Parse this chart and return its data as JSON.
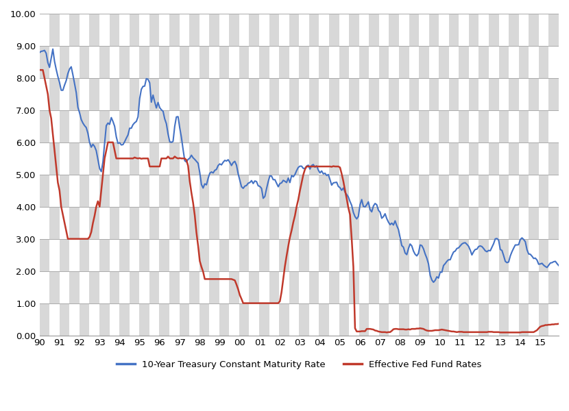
{
  "title": "",
  "xlabel": "",
  "ylabel": "",
  "ylim": [
    0.0,
    10.0
  ],
  "yticks": [
    0.0,
    1.0,
    2.0,
    3.0,
    4.0,
    5.0,
    6.0,
    7.0,
    8.0,
    9.0,
    10.0
  ],
  "xtick_labels": [
    "90",
    "91",
    "92",
    "93",
    "94",
    "95",
    "96",
    "97",
    "98",
    "99",
    "00",
    "01",
    "02",
    "03",
    "04",
    "05",
    "06",
    "07",
    "08",
    "09",
    "10",
    "11",
    "12",
    "13",
    "14",
    "15"
  ],
  "treasury_color": "#4472C4",
  "fed_color": "#C0392B",
  "legend_treasury": "10-Year Treasury Constant Maturity Rate",
  "legend_fed": "Effective Fed Fund Rates",
  "checker_light": "#ffffff",
  "checker_dark": "#d8d8d8",
  "gridline_color": "#aaaaaa",
  "n_checker_cols": 52,
  "n_checker_rows": 10,
  "treasury_data": [
    8.79,
    8.83,
    8.84,
    8.86,
    8.77,
    8.48,
    8.33,
    8.61,
    8.9,
    8.52,
    8.27,
    8.05,
    7.86,
    7.62,
    7.62,
    7.78,
    7.92,
    8.14,
    8.28,
    8.35,
    8.1,
    7.83,
    7.55,
    7.09,
    6.92,
    6.71,
    6.6,
    6.52,
    6.46,
    6.28,
    6.0,
    5.85,
    5.94,
    5.87,
    5.74,
    5.47,
    5.19,
    5.09,
    5.39,
    5.97,
    6.52,
    6.6,
    6.56,
    6.77,
    6.65,
    6.5,
    6.17,
    5.97,
    5.99,
    5.92,
    5.93,
    6.02,
    6.13,
    6.23,
    6.44,
    6.44,
    6.55,
    6.61,
    6.65,
    6.79,
    7.36,
    7.65,
    7.74,
    7.75,
    7.98,
    7.96,
    7.85,
    7.25,
    7.47,
    7.26,
    7.07,
    7.24,
    7.08,
    7.01,
    6.97,
    6.73,
    6.58,
    6.26,
    6.02,
    6.0,
    6.03,
    6.5,
    6.79,
    6.8,
    6.45,
    6.16,
    5.78,
    5.43,
    5.39,
    5.47,
    5.51,
    5.6,
    5.52,
    5.47,
    5.41,
    5.35,
    5.06,
    4.69,
    4.58,
    4.71,
    4.68,
    4.88,
    5.04,
    5.08,
    5.05,
    5.13,
    5.16,
    5.28,
    5.33,
    5.3,
    5.38,
    5.44,
    5.42,
    5.46,
    5.38,
    5.28,
    5.37,
    5.41,
    5.29,
    5.02,
    4.82,
    4.62,
    4.57,
    4.64,
    4.66,
    4.73,
    4.75,
    4.81,
    4.72,
    4.8,
    4.78,
    4.65,
    4.63,
    4.57,
    4.26,
    4.32,
    4.56,
    4.78,
    4.96,
    4.95,
    4.84,
    4.84,
    4.73,
    4.62,
    4.72,
    4.74,
    4.82,
    4.79,
    4.75,
    4.89,
    4.75,
    4.97,
    4.93,
    5.0,
    5.12,
    5.22,
    5.26,
    5.26,
    5.19,
    5.19,
    5.26,
    5.29,
    5.17,
    5.28,
    5.31,
    5.23,
    5.27,
    5.14,
    5.05,
    5.11,
    5.02,
    5.04,
    4.97,
    5.0,
    4.84,
    4.67,
    4.74,
    4.75,
    4.76,
    4.63,
    4.59,
    4.51,
    4.58,
    4.45,
    4.38,
    4.3,
    4.16,
    4.04,
    3.82,
    3.69,
    3.62,
    3.7,
    4.06,
    4.22,
    4.01,
    3.99,
    4.06,
    4.15,
    3.91,
    3.84,
    4.02,
    4.1,
    4.06,
    3.89,
    3.83,
    3.64,
    3.69,
    3.78,
    3.63,
    3.52,
    3.44,
    3.49,
    3.43,
    3.56,
    3.41,
    3.29,
    3.04,
    2.79,
    2.74,
    2.56,
    2.51,
    2.7,
    2.84,
    2.78,
    2.62,
    2.52,
    2.47,
    2.55,
    2.81,
    2.79,
    2.69,
    2.53,
    2.4,
    2.22,
    1.87,
    1.72,
    1.65,
    1.71,
    1.82,
    1.78,
    1.97,
    1.96,
    2.17,
    2.23,
    2.3,
    2.35,
    2.35,
    2.48,
    2.59,
    2.62,
    2.7,
    2.72,
    2.78,
    2.84,
    2.87,
    2.88,
    2.83,
    2.77,
    2.65,
    2.5,
    2.6,
    2.67,
    2.68,
    2.76,
    2.78,
    2.76,
    2.7,
    2.63,
    2.6,
    2.64,
    2.63,
    2.74,
    2.85,
    3.0,
    3.01,
    2.96,
    2.67,
    2.64,
    2.48,
    2.3,
    2.26,
    2.28,
    2.47,
    2.6,
    2.71,
    2.81,
    2.81,
    2.82,
    2.98,
    3.03,
    2.98,
    2.91,
    2.66,
    2.53,
    2.52,
    2.46,
    2.39,
    2.4,
    2.34,
    2.21,
    2.22,
    2.24,
    2.18,
    2.14,
    2.11,
    2.18,
    2.25,
    2.26,
    2.29,
    2.3,
    2.23,
    2.17
  ],
  "fed_data": [
    8.25,
    8.25,
    8.25,
    8.0,
    7.75,
    7.5,
    7.0,
    6.75,
    6.25,
    5.75,
    5.25,
    4.75,
    4.5,
    4.0,
    3.75,
    3.5,
    3.25,
    3.0,
    3.0,
    3.0,
    3.0,
    3.0,
    3.0,
    3.0,
    3.0,
    3.0,
    3.0,
    3.0,
    3.0,
    3.0,
    3.06,
    3.21,
    3.49,
    3.72,
    4.0,
    4.17,
    4.0,
    4.5,
    5.0,
    5.5,
    5.75,
    6.0,
    6.0,
    6.0,
    6.0,
    5.75,
    5.5,
    5.5,
    5.5,
    5.5,
    5.5,
    5.5,
    5.5,
    5.5,
    5.5,
    5.5,
    5.5,
    5.53,
    5.51,
    5.5,
    5.51,
    5.49,
    5.5,
    5.5,
    5.5,
    5.5,
    5.25,
    5.25,
    5.25,
    5.25,
    5.25,
    5.25,
    5.25,
    5.5,
    5.5,
    5.5,
    5.5,
    5.56,
    5.5,
    5.5,
    5.5,
    5.56,
    5.52,
    5.5,
    5.51,
    5.5,
    5.5,
    5.5,
    5.45,
    5.27,
    4.79,
    4.43,
    4.12,
    3.73,
    3.2,
    2.79,
    2.31,
    2.13,
    1.98,
    1.75,
    1.75,
    1.75,
    1.75,
    1.75,
    1.75,
    1.75,
    1.75,
    1.75,
    1.75,
    1.75,
    1.75,
    1.75,
    1.75,
    1.75,
    1.75,
    1.75,
    1.73,
    1.71,
    1.58,
    1.43,
    1.25,
    1.13,
    1.0,
    1.0,
    1.0,
    1.0,
    1.0,
    1.0,
    1.0,
    1.0,
    1.0,
    1.0,
    1.0,
    1.0,
    1.0,
    1.0,
    1.0,
    1.0,
    1.0,
    1.0,
    1.0,
    1.0,
    1.0,
    1.0,
    1.06,
    1.35,
    1.75,
    2.15,
    2.47,
    2.77,
    3.05,
    3.26,
    3.51,
    3.72,
    4.0,
    4.22,
    4.5,
    4.75,
    4.99,
    5.16,
    5.25,
    5.25,
    5.25,
    5.25,
    5.25,
    5.25,
    5.25,
    5.25,
    5.25,
    5.25,
    5.25,
    5.25,
    5.25,
    5.25,
    5.25,
    5.24,
    5.26,
    5.25,
    5.25,
    5.25,
    5.22,
    5.02,
    4.79,
    4.51,
    4.25,
    3.96,
    3.75,
    3.0,
    2.13,
    0.22,
    0.12,
    0.12,
    0.12,
    0.13,
    0.13,
    0.13,
    0.2,
    0.2,
    0.2,
    0.19,
    0.18,
    0.15,
    0.14,
    0.12,
    0.11,
    0.1,
    0.1,
    0.1,
    0.09,
    0.1,
    0.1,
    0.14,
    0.19,
    0.2,
    0.2,
    0.19,
    0.19,
    0.19,
    0.19,
    0.18,
    0.18,
    0.19,
    0.18,
    0.2,
    0.2,
    0.2,
    0.21,
    0.21,
    0.22,
    0.21,
    0.2,
    0.17,
    0.15,
    0.14,
    0.14,
    0.14,
    0.15,
    0.16,
    0.16,
    0.16,
    0.17,
    0.18,
    0.17,
    0.16,
    0.15,
    0.14,
    0.13,
    0.12,
    0.12,
    0.11,
    0.1,
    0.11,
    0.11,
    0.11,
    0.1,
    0.1,
    0.1,
    0.1,
    0.1,
    0.1,
    0.1,
    0.1,
    0.1,
    0.1,
    0.1,
    0.1,
    0.1,
    0.1,
    0.1,
    0.11,
    0.11,
    0.11,
    0.1,
    0.1,
    0.1,
    0.1,
    0.09,
    0.09,
    0.09,
    0.09,
    0.09,
    0.09,
    0.09,
    0.09,
    0.09,
    0.09,
    0.09,
    0.09,
    0.09,
    0.1,
    0.1,
    0.1,
    0.1,
    0.1,
    0.1,
    0.1,
    0.1,
    0.13,
    0.16,
    0.22,
    0.27,
    0.29,
    0.3,
    0.32,
    0.32,
    0.33,
    0.33,
    0.34,
    0.34,
    0.35,
    0.35,
    0.36
  ]
}
